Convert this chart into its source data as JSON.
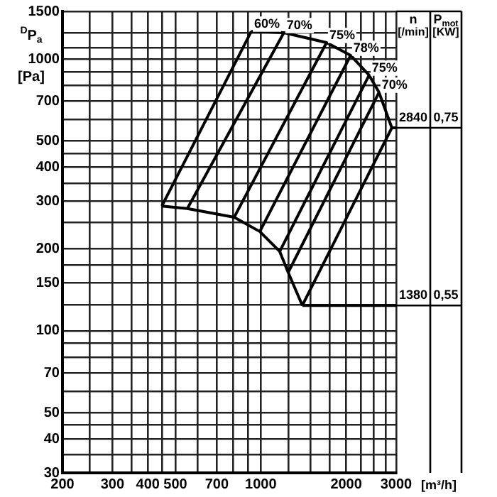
{
  "chart_data": {
    "type": "line",
    "xlabel": "[m³/h]",
    "ylabel": "$^{D}$P$_{a}$ [Pa]",
    "log": "xy",
    "grid": true,
    "legend": false,
    "marker": "none",
    "line_style": "solid",
    "xlim": [
      200,
      3000
    ],
    "xticks": [
      200,
      {
        "value": 250,
        "label": null
      },
      300,
      {
        "value": 350,
        "label": null
      },
      400,
      {
        "value": 450,
        "label": null
      },
      500,
      {
        "value": 600,
        "label": null
      },
      700,
      {
        "value": 800,
        "label": null
      },
      {
        "value": 900,
        "label": null
      },
      1000,
      {
        "value": 1250,
        "label": null
      },
      {
        "value": 1500,
        "label": null
      },
      {
        "value": 1750,
        "label": null
      },
      2000,
      {
        "value": 2250,
        "label": null
      },
      {
        "value": 2500,
        "label": null
      },
      {
        "value": 2750,
        "label": null
      },
      3000
    ],
    "ylim": [
      30,
      1500
    ],
    "yticks": [
      30,
      {
        "value": 35,
        "label": null
      },
      40,
      {
        "value": 45,
        "label": null
      },
      50,
      {
        "value": 60,
        "label": null
      },
      70,
      {
        "value": 80,
        "label": null
      },
      {
        "value": 90,
        "label": null
      },
      100,
      {
        "value": 125,
        "label": null
      },
      150,
      {
        "value": 175,
        "label": null
      },
      200,
      {
        "value": 250,
        "label": null
      },
      300,
      {
        "value": 350,
        "label": null
      },
      400,
      {
        "value": 450,
        "label": null
      },
      500,
      {
        "value": 600,
        "label": null
      },
      700,
      {
        "value": 800,
        "label": null
      },
      {
        "value": 900,
        "label": null
      },
      1000,
      {
        "value": 1100,
        "label": null
      },
      {
        "value": 1250,
        "label": null
      },
      1500
    ],
    "series": [
      {
        "color": "#000000",
        "x": [
          926,
          1206,
          1705,
          2073,
          2408,
          2610,
          2896
        ],
        "values": [
          1267,
          1252,
          1151,
          1033,
          873,
          755,
          559
        ]
      },
      {
        "color": "#000000",
        "x": [
          448,
          551,
          806,
          992,
          1166,
          1249,
          1401
        ],
        "values": [
          288,
          282,
          262,
          232,
          196,
          164,
          124
        ]
      },
      {
        "name": "60%",
        "color": "#000000",
        "x": [
          448,
          926
        ],
        "values": [
          288,
          1267
        ]
      },
      {
        "name": "70%",
        "color": "#000000",
        "x": [
          551,
          1206
        ],
        "values": [
          282,
          1252
        ]
      },
      {
        "name": "75%",
        "color": "#000000",
        "x": [
          806,
          1705
        ],
        "values": [
          262,
          1151
        ]
      },
      {
        "name": "78%",
        "color": "#000000",
        "x": [
          992,
          2073
        ],
        "values": [
          232,
          1033
        ]
      },
      {
        "name": "75%",
        "color": "#000000",
        "x": [
          1166,
          2408
        ],
        "values": [
          196,
          873
        ]
      },
      {
        "name": "70%",
        "color": "#000000",
        "x": [
          1249,
          2610
        ],
        "values": [
          164,
          755
        ]
      },
      {
        "color": "#000000",
        "x": [
          1401,
          2896
        ],
        "values": [
          124,
          559
        ]
      }
    ],
    "annotations": [
      "n [/min]",
      "P$_{mot}$ [KW]",
      {
        "text": "2840",
        "x": 2896,
        "y": 559
      },
      "0,75",
      {
        "text": "1380",
        "x": 1401,
        "y": 124
      },
      "0,55"
    ]
  }
}
